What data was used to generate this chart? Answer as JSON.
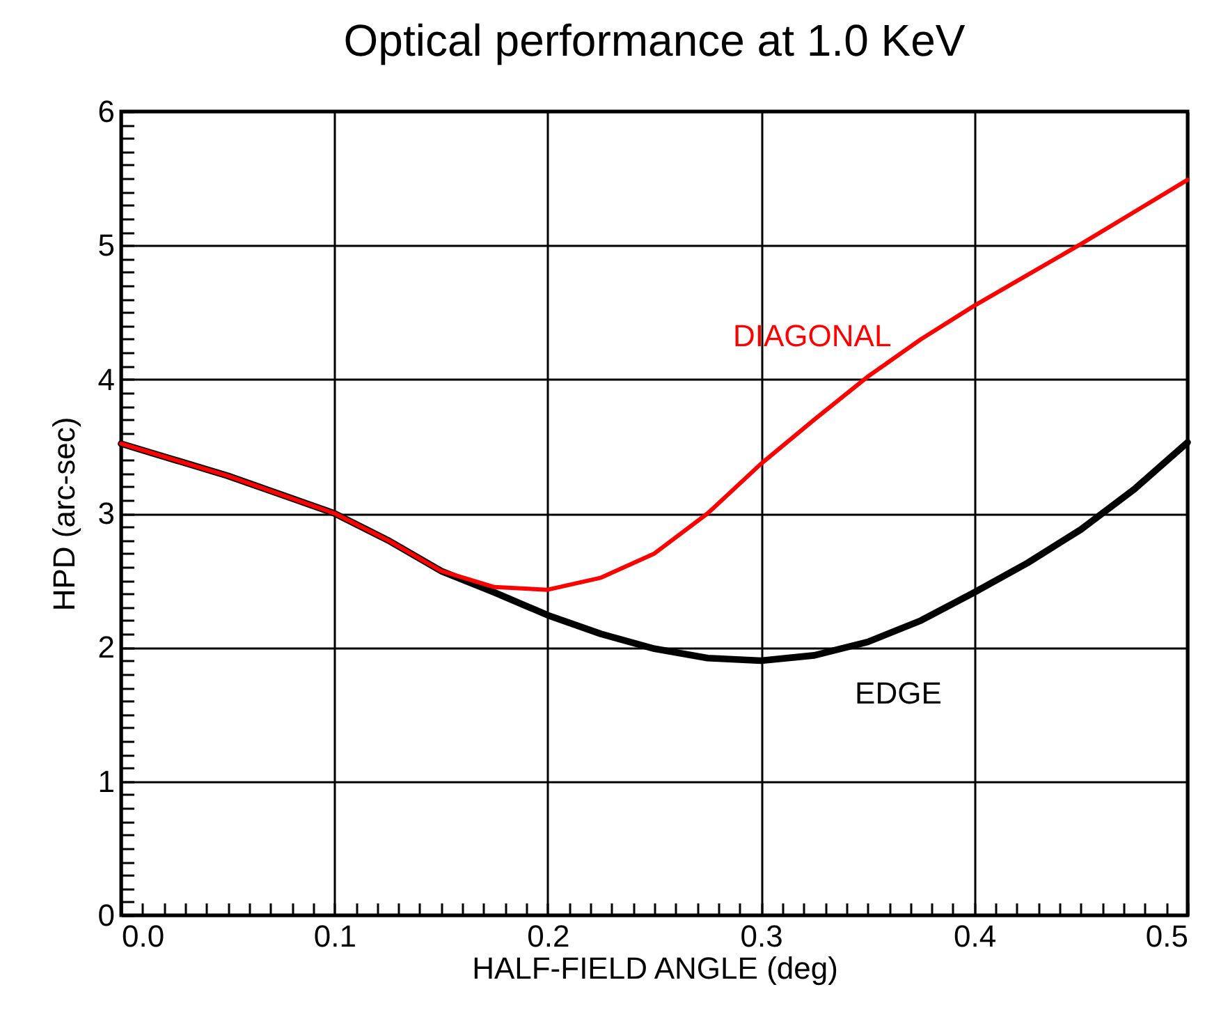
{
  "chart_data": {
    "type": "line",
    "title": "Optical performance at 1.0 KeV",
    "xlabel": "HALF-FIELD ANGLE (deg)",
    "ylabel": "HPD (arc-sec)",
    "x": [
      0,
      0.025,
      0.05,
      0.075,
      0.1,
      0.125,
      0.15,
      0.175,
      0.2,
      0.225,
      0.25,
      0.275,
      0.3,
      0.325,
      0.35,
      0.375,
      0.4,
      0.425,
      0.45,
      0.475,
      0.5
    ],
    "series": [
      {
        "name": "DIAGONAL",
        "color": "#ff0000",
        "values": [
          3.52,
          3.4,
          3.28,
          3.14,
          3.0,
          2.8,
          2.57,
          2.45,
          2.43,
          2.52,
          2.7,
          3.0,
          3.37,
          3.7,
          4.02,
          4.3,
          4.55,
          4.78,
          5.01,
          5.25,
          5.49
        ]
      },
      {
        "name": "EDGE",
        "color": "#000000",
        "values": [
          3.52,
          3.4,
          3.28,
          3.14,
          3.0,
          2.8,
          2.57,
          2.41,
          2.24,
          2.1,
          1.99,
          1.92,
          1.9,
          1.94,
          2.04,
          2.2,
          2.41,
          2.63,
          2.88,
          3.18,
          3.53
        ]
      }
    ],
    "xlim": [
      0,
      0.5
    ],
    "ylim": [
      0,
      6
    ],
    "xticks": [
      {
        "value": 0,
        "label": "0.0"
      },
      {
        "value": 0.1,
        "label": "0.1"
      },
      {
        "value": 0.2,
        "label": "0.2"
      },
      {
        "value": 0.3,
        "label": "0.3"
      },
      {
        "value": 0.4,
        "label": "0.4"
      },
      {
        "value": 0.5,
        "label": "0.5"
      }
    ],
    "yticks": [
      0,
      1,
      2,
      3,
      4,
      5,
      6
    ],
    "grid": true,
    "line_style": "solid",
    "marker": "none"
  }
}
